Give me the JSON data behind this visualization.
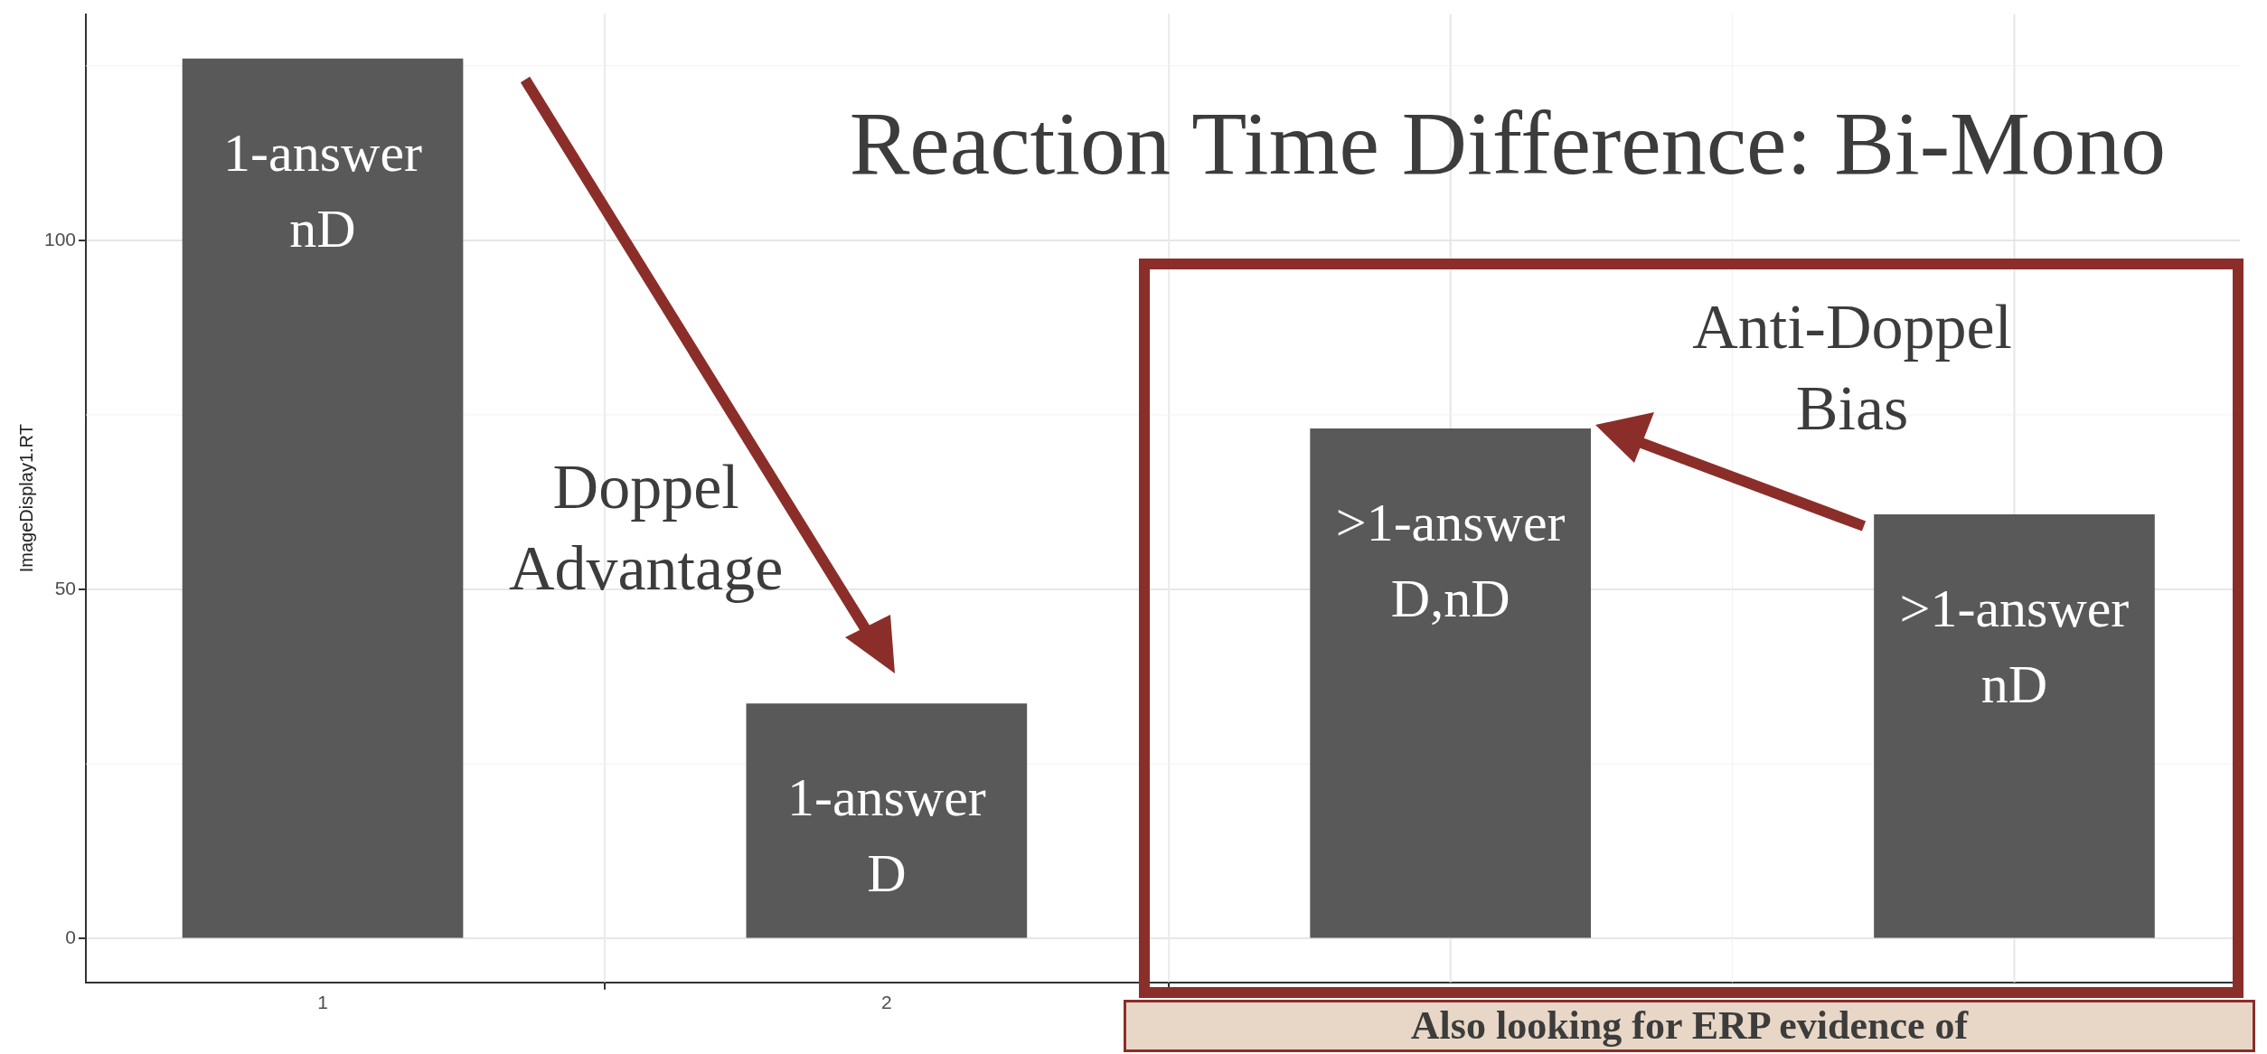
{
  "chart_data": {
    "type": "bar",
    "title": "Reaction Time Difference: Bi-Mono",
    "ylabel": "ImageDisplay1.RT",
    "x": [
      1,
      2,
      3,
      4
    ],
    "values": [
      126,
      33.6,
      73,
      60.7
    ],
    "color": "#595959",
    "xlim": [
      0.58,
      4.4
    ],
    "xticks": [
      1,
      2
    ],
    "ylim": [
      -6.3,
      132.4
    ],
    "yticks": [
      0,
      50,
      100
    ],
    "grid": true,
    "legend": false,
    "annotations": [
      "1-answer\nnD",
      "1-answer\nD",
      ">1-answer\nD,nD",
      ">1-answer\nnD",
      "Doppel\nAdvantage",
      "Anti-Doppel\nBias",
      "Also looking for ERP evidence of"
    ]
  }
}
